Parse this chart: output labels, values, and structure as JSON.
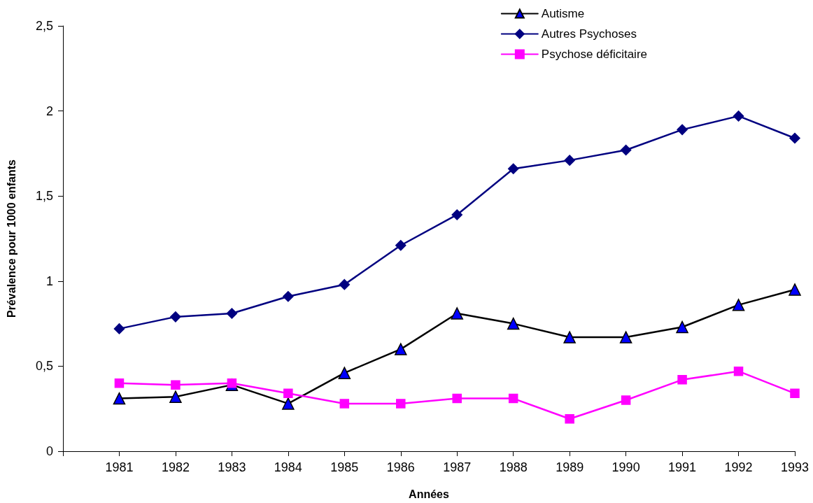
{
  "chart_data": {
    "type": "line",
    "xlabel": "Années",
    "ylabel": "Prévalence pour 1000 enfants",
    "categories": [
      null,
      "1981",
      "1982",
      "1983",
      "1984",
      "1985",
      "1986",
      "1987",
      "1988",
      "1989",
      "1990",
      "1991",
      "1992",
      "1993"
    ],
    "series": [
      {
        "name": "Autisme",
        "color": "#000000",
        "marker": "triangle",
        "colors": [
          null,
          "#0000ff",
          "#0000ff",
          "#0000ff",
          "#0000ff",
          "#0000ff",
          "#0000ff",
          "#0000ff",
          "#0000ff",
          "#0000ff",
          "#0000ff",
          "#0000ff",
          "#0000ff",
          "#0000ff"
        ],
        "values": [
          null,
          0.31,
          0.32,
          0.39,
          0.28,
          0.46,
          0.6,
          0.81,
          0.75,
          0.67,
          0.67,
          0.73,
          0.86,
          0.95
        ]
      },
      {
        "name": "Autres Psychoses",
        "color": "#000080",
        "marker": "diamond",
        "values": [
          null,
          0.72,
          0.79,
          0.81,
          0.91,
          0.98,
          1.21,
          1.39,
          1.66,
          1.71,
          1.77,
          1.89,
          1.97,
          1.84
        ]
      },
      {
        "name": "Psychose déficitaire",
        "color": "#ff00ff",
        "marker": "square",
        "values": [
          null,
          0.4,
          0.39,
          0.4,
          0.34,
          0.28,
          0.28,
          0.31,
          0.31,
          0.19,
          0.3,
          0.42,
          0.47,
          0.34
        ]
      }
    ],
    "ylim": [
      0,
      2.5
    ],
    "yticks": [
      0,
      {
        "value": 0.5,
        "label": "0,5"
      },
      1,
      {
        "value": 1.5,
        "label": "1,5"
      },
      2,
      {
        "value": 2.5,
        "label": "2,5"
      }
    ],
    "legend": "top right",
    "line_style": "solid"
  }
}
